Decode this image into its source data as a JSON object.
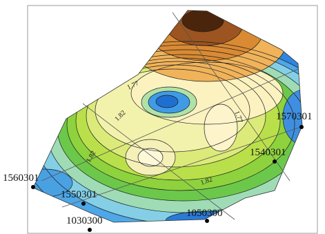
{
  "map": {
    "contour_labels": [
      "1.77",
      "1.82",
      "1.82",
      "1.82",
      "1.77"
    ],
    "wells": [
      {
        "id": "1570301"
      },
      {
        "id": "1540301"
      },
      {
        "id": "1560301"
      },
      {
        "id": "1550301"
      },
      {
        "id": "1030300"
      },
      {
        "id": "1050300"
      }
    ],
    "colors": {
      "background": "#ffffff",
      "frame": "#9a9a9a",
      "contour": "#1b1b1b",
      "grid_line": "#555555",
      "well_marker": "#000000"
    }
  }
}
